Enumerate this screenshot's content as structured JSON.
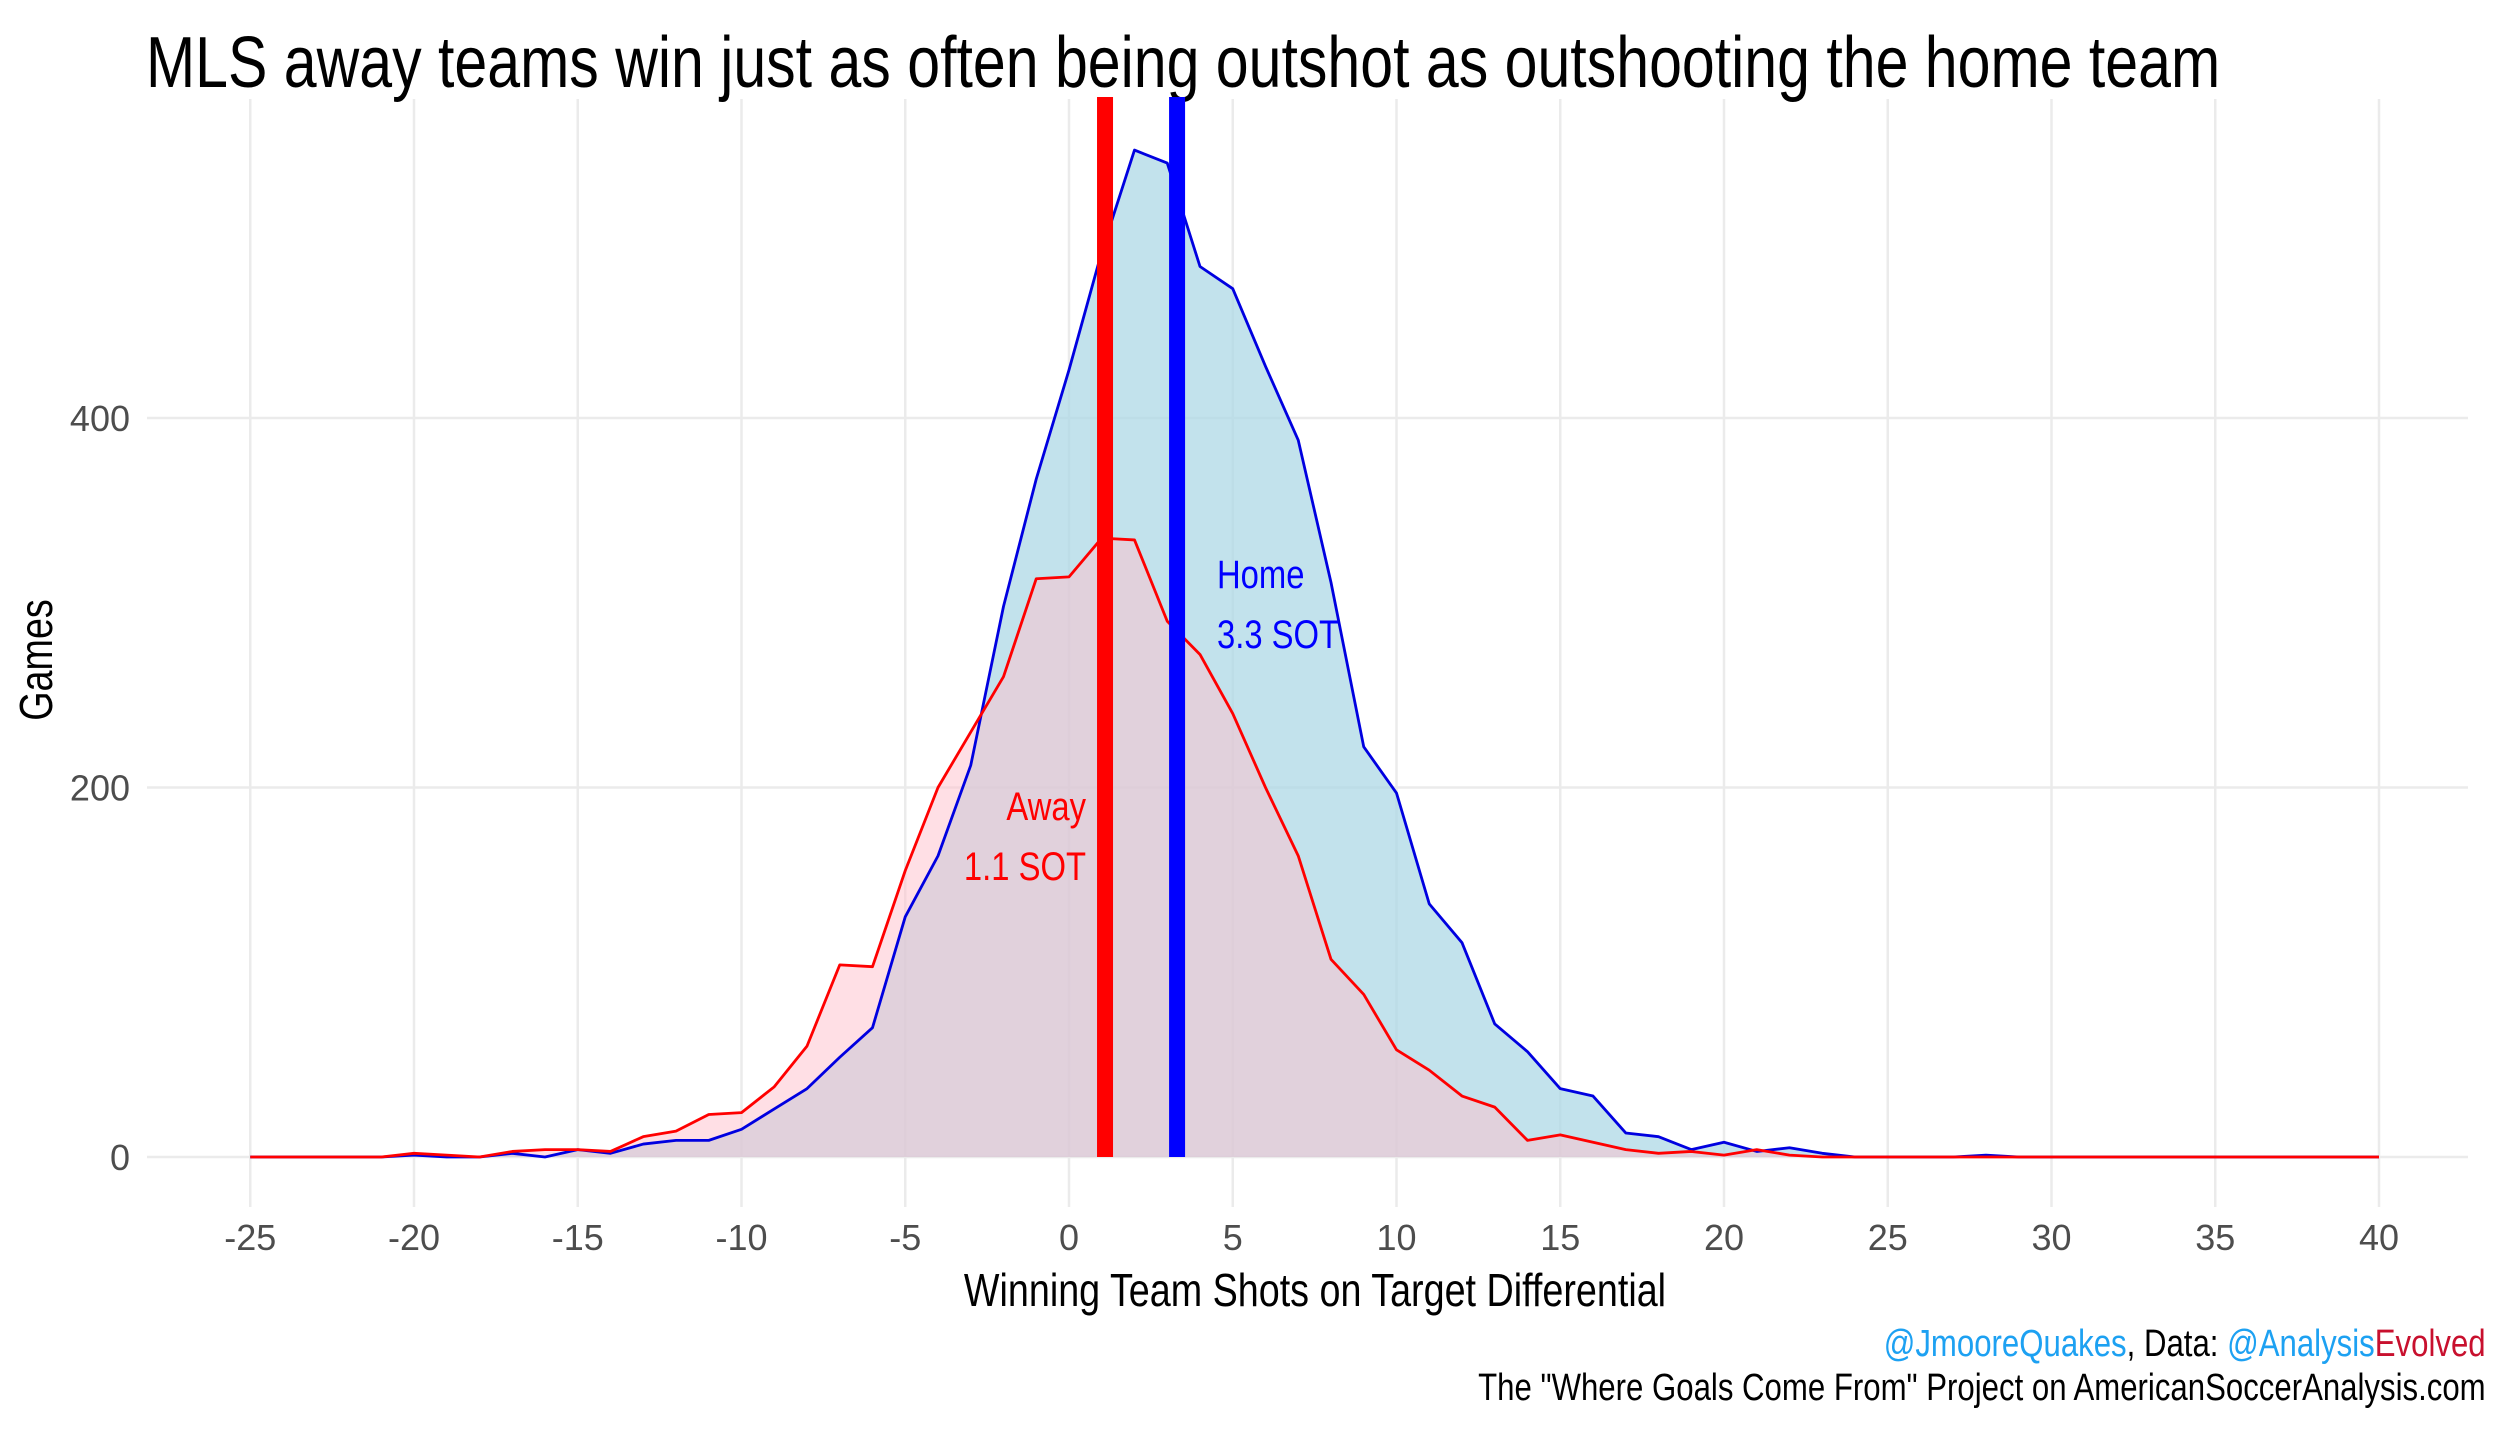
{
  "title": "MLS away teams win just as often being outshot as outshooting the home team",
  "footer": {
    "handle": "@JmooreQuakes",
    "data_sep": ", Data: ",
    "source_a": "@Analysis",
    "source_b": "Evolved",
    "line2": "The \"Where Goals Come From\" Project on AmericanSoccerAnalysis.com",
    "colors": {
      "handle": "#1da1f2",
      "source_a": "#1da1f2",
      "source_b": "#c8102e"
    }
  },
  "chart_data": {
    "type": "area",
    "title": "MLS away teams win just as often being outshot as outshooting the home team",
    "xlabel": "Winning Team Shots on Target Differential",
    "ylabel": "Games",
    "xlim": [
      -25,
      40
    ],
    "ylim": [
      0,
      560
    ],
    "xticks": [
      -25,
      -20,
      -15,
      -10,
      -5,
      0,
      5,
      10,
      15,
      20,
      25,
      30,
      35,
      40
    ],
    "yticks": [
      0,
      200,
      400
    ],
    "grid": true,
    "legend": "none",
    "x": [
      -25,
      -24,
      -23,
      -22,
      -21,
      -20,
      -19,
      -18,
      -17,
      -16,
      -15,
      -14,
      -13,
      -12,
      -11,
      -10,
      -9,
      -8,
      -7,
      -6,
      -5,
      -4,
      -3,
      -2,
      -1,
      0,
      1,
      2,
      3,
      4,
      5,
      6,
      7,
      8,
      9,
      10,
      11,
      12,
      13,
      14,
      15,
      16,
      17,
      18,
      19,
      20,
      21,
      22,
      23,
      24,
      25,
      26,
      27,
      28,
      29,
      30,
      31,
      32,
      33,
      34,
      35,
      36,
      37,
      38,
      39,
      40
    ],
    "series": [
      {
        "name": "Home",
        "color": "#0000e0",
        "fill": "#add8e6",
        "values": [
          0,
          0,
          0,
          0,
          0,
          1,
          0,
          0,
          2,
          0,
          4,
          2,
          7,
          9,
          9,
          15,
          26,
          37,
          54,
          70,
          130,
          163,
          212,
          298,
          367,
          426,
          490,
          545,
          538,
          482,
          470,
          428,
          388,
          311,
          222,
          197,
          137,
          116,
          72,
          57,
          37,
          33,
          13,
          11,
          4,
          8,
          3,
          5,
          2,
          0,
          0,
          0,
          0,
          1,
          0,
          0,
          0,
          0,
          0,
          0,
          0,
          0,
          0,
          0,
          0,
          0
        ]
      },
      {
        "name": "Away",
        "color": "#ff0000",
        "fill": "#ffc0cb",
        "values": [
          0,
          0,
          0,
          0,
          0,
          2,
          1,
          0,
          3,
          4,
          4,
          3,
          11,
          14,
          23,
          24,
          38,
          60,
          104,
          103,
          155,
          200,
          230,
          260,
          313,
          314,
          335,
          334,
          290,
          272,
          240,
          200,
          163,
          107,
          88,
          58,
          47,
          33,
          27,
          9,
          12,
          8,
          4,
          2,
          3,
          1,
          4,
          1,
          0,
          0,
          0,
          0,
          0,
          0,
          0,
          0,
          0,
          0,
          0,
          0,
          0,
          0,
          0,
          0,
          0,
          0
        ]
      }
    ],
    "mean_lines": [
      {
        "name": "Away",
        "value": 1.1,
        "color": "#ff0000",
        "label1": "Away",
        "label2": "1.1 SOT"
      },
      {
        "name": "Home",
        "value": 3.3,
        "color": "#0000ff",
        "label1": "Home",
        "label2": "3.3 SOT"
      }
    ]
  }
}
